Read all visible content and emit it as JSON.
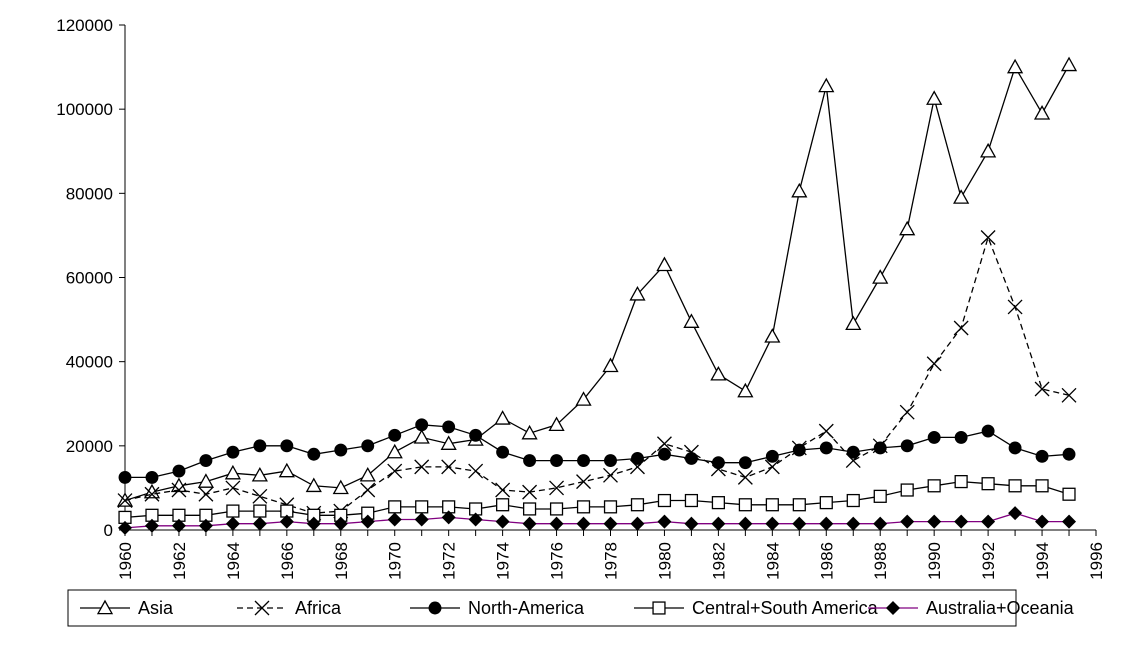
{
  "chart_data": {
    "type": "line",
    "title": "",
    "xlabel": "",
    "ylabel": "",
    "x": [
      1960,
      1961,
      1962,
      1963,
      1964,
      1965,
      1966,
      1967,
      1968,
      1969,
      1970,
      1971,
      1972,
      1973,
      1974,
      1975,
      1976,
      1977,
      1978,
      1979,
      1980,
      1981,
      1982,
      1983,
      1984,
      1985,
      1986,
      1987,
      1988,
      1989,
      1990,
      1991,
      1992,
      1993,
      1994,
      1995
    ],
    "xlim": [
      1960,
      1996
    ],
    "xticks": [
      "1960",
      "1962",
      "1964",
      "1966",
      "1968",
      "1970",
      "1972",
      "1974",
      "1976",
      "1978",
      "1980",
      "1982",
      "1984",
      "1986",
      "1988",
      "1990",
      "1992",
      "1994",
      "1996"
    ],
    "ylim": [
      0,
      120000
    ],
    "yticks": [
      "0",
      "20000",
      "40000",
      "60000",
      "80000",
      "100000",
      "120000"
    ],
    "grid": false,
    "legend": "bottom",
    "series": [
      {
        "name": "Asia",
        "marker": "triangle-open",
        "color": "#000000",
        "dash": "solid",
        "values": [
          7000,
          9000,
          10500,
          11500,
          13500,
          13000,
          14000,
          10500,
          10000,
          13000,
          18500,
          22000,
          20500,
          21500,
          26500,
          23000,
          25000,
          31000,
          39000,
          56000,
          63000,
          49500,
          37000,
          33000,
          46000,
          80500,
          105500,
          49000,
          60000,
          71500,
          102500,
          79000,
          90000,
          110000,
          99000,
          110500
        ]
      },
      {
        "name": "Africa",
        "marker": "x",
        "color": "#000000",
        "dash": "dashed",
        "values": [
          7000,
          8500,
          9500,
          8500,
          10000,
          8000,
          6000,
          4000,
          4500,
          9500,
          14000,
          15000,
          15000,
          14000,
          9500,
          9000,
          10000,
          11500,
          13000,
          15000,
          20500,
          18500,
          14500,
          12500,
          15000,
          19500,
          23500,
          16500,
          20000,
          28000,
          39500,
          48000,
          69500,
          53000,
          33500,
          32000
        ]
      },
      {
        "name": "North-America",
        "marker": "circle-filled",
        "color": "#000000",
        "dash": "solid",
        "values": [
          12500,
          12500,
          14000,
          16500,
          18500,
          20000,
          20000,
          18000,
          19000,
          20000,
          22500,
          25000,
          24500,
          22500,
          18500,
          16500,
          16500,
          16500,
          16500,
          17000,
          18000,
          17000,
          16000,
          16000,
          17500,
          19000,
          19500,
          18500,
          19500,
          20000,
          22000,
          22000,
          23500,
          19500,
          17500,
          18000
        ]
      },
      {
        "name": "Central+South America",
        "marker": "square-open",
        "color": "#000000",
        "dash": "solid",
        "values": [
          3000,
          3500,
          3500,
          3500,
          4500,
          4500,
          4500,
          3500,
          3500,
          4000,
          5500,
          5500,
          5500,
          5000,
          6000,
          5000,
          5000,
          5500,
          5500,
          6000,
          7000,
          7000,
          6500,
          6000,
          6000,
          6000,
          6500,
          7000,
          8000,
          9500,
          10500,
          11500,
          11000,
          10500,
          10500,
          8500
        ]
      },
      {
        "name": "Australia+Oceania",
        "marker": "diamond-filled",
        "color": "#800080",
        "dash": "solid",
        "values": [
          500,
          1000,
          1000,
          1000,
          1500,
          1500,
          2000,
          1500,
          1500,
          2000,
          2500,
          2500,
          3000,
          2500,
          2000,
          1500,
          1500,
          1500,
          1500,
          1500,
          2000,
          1500,
          1500,
          1500,
          1500,
          1500,
          1500,
          1500,
          1500,
          2000,
          2000,
          2000,
          2000,
          4000,
          2000,
          2000
        ]
      }
    ]
  }
}
